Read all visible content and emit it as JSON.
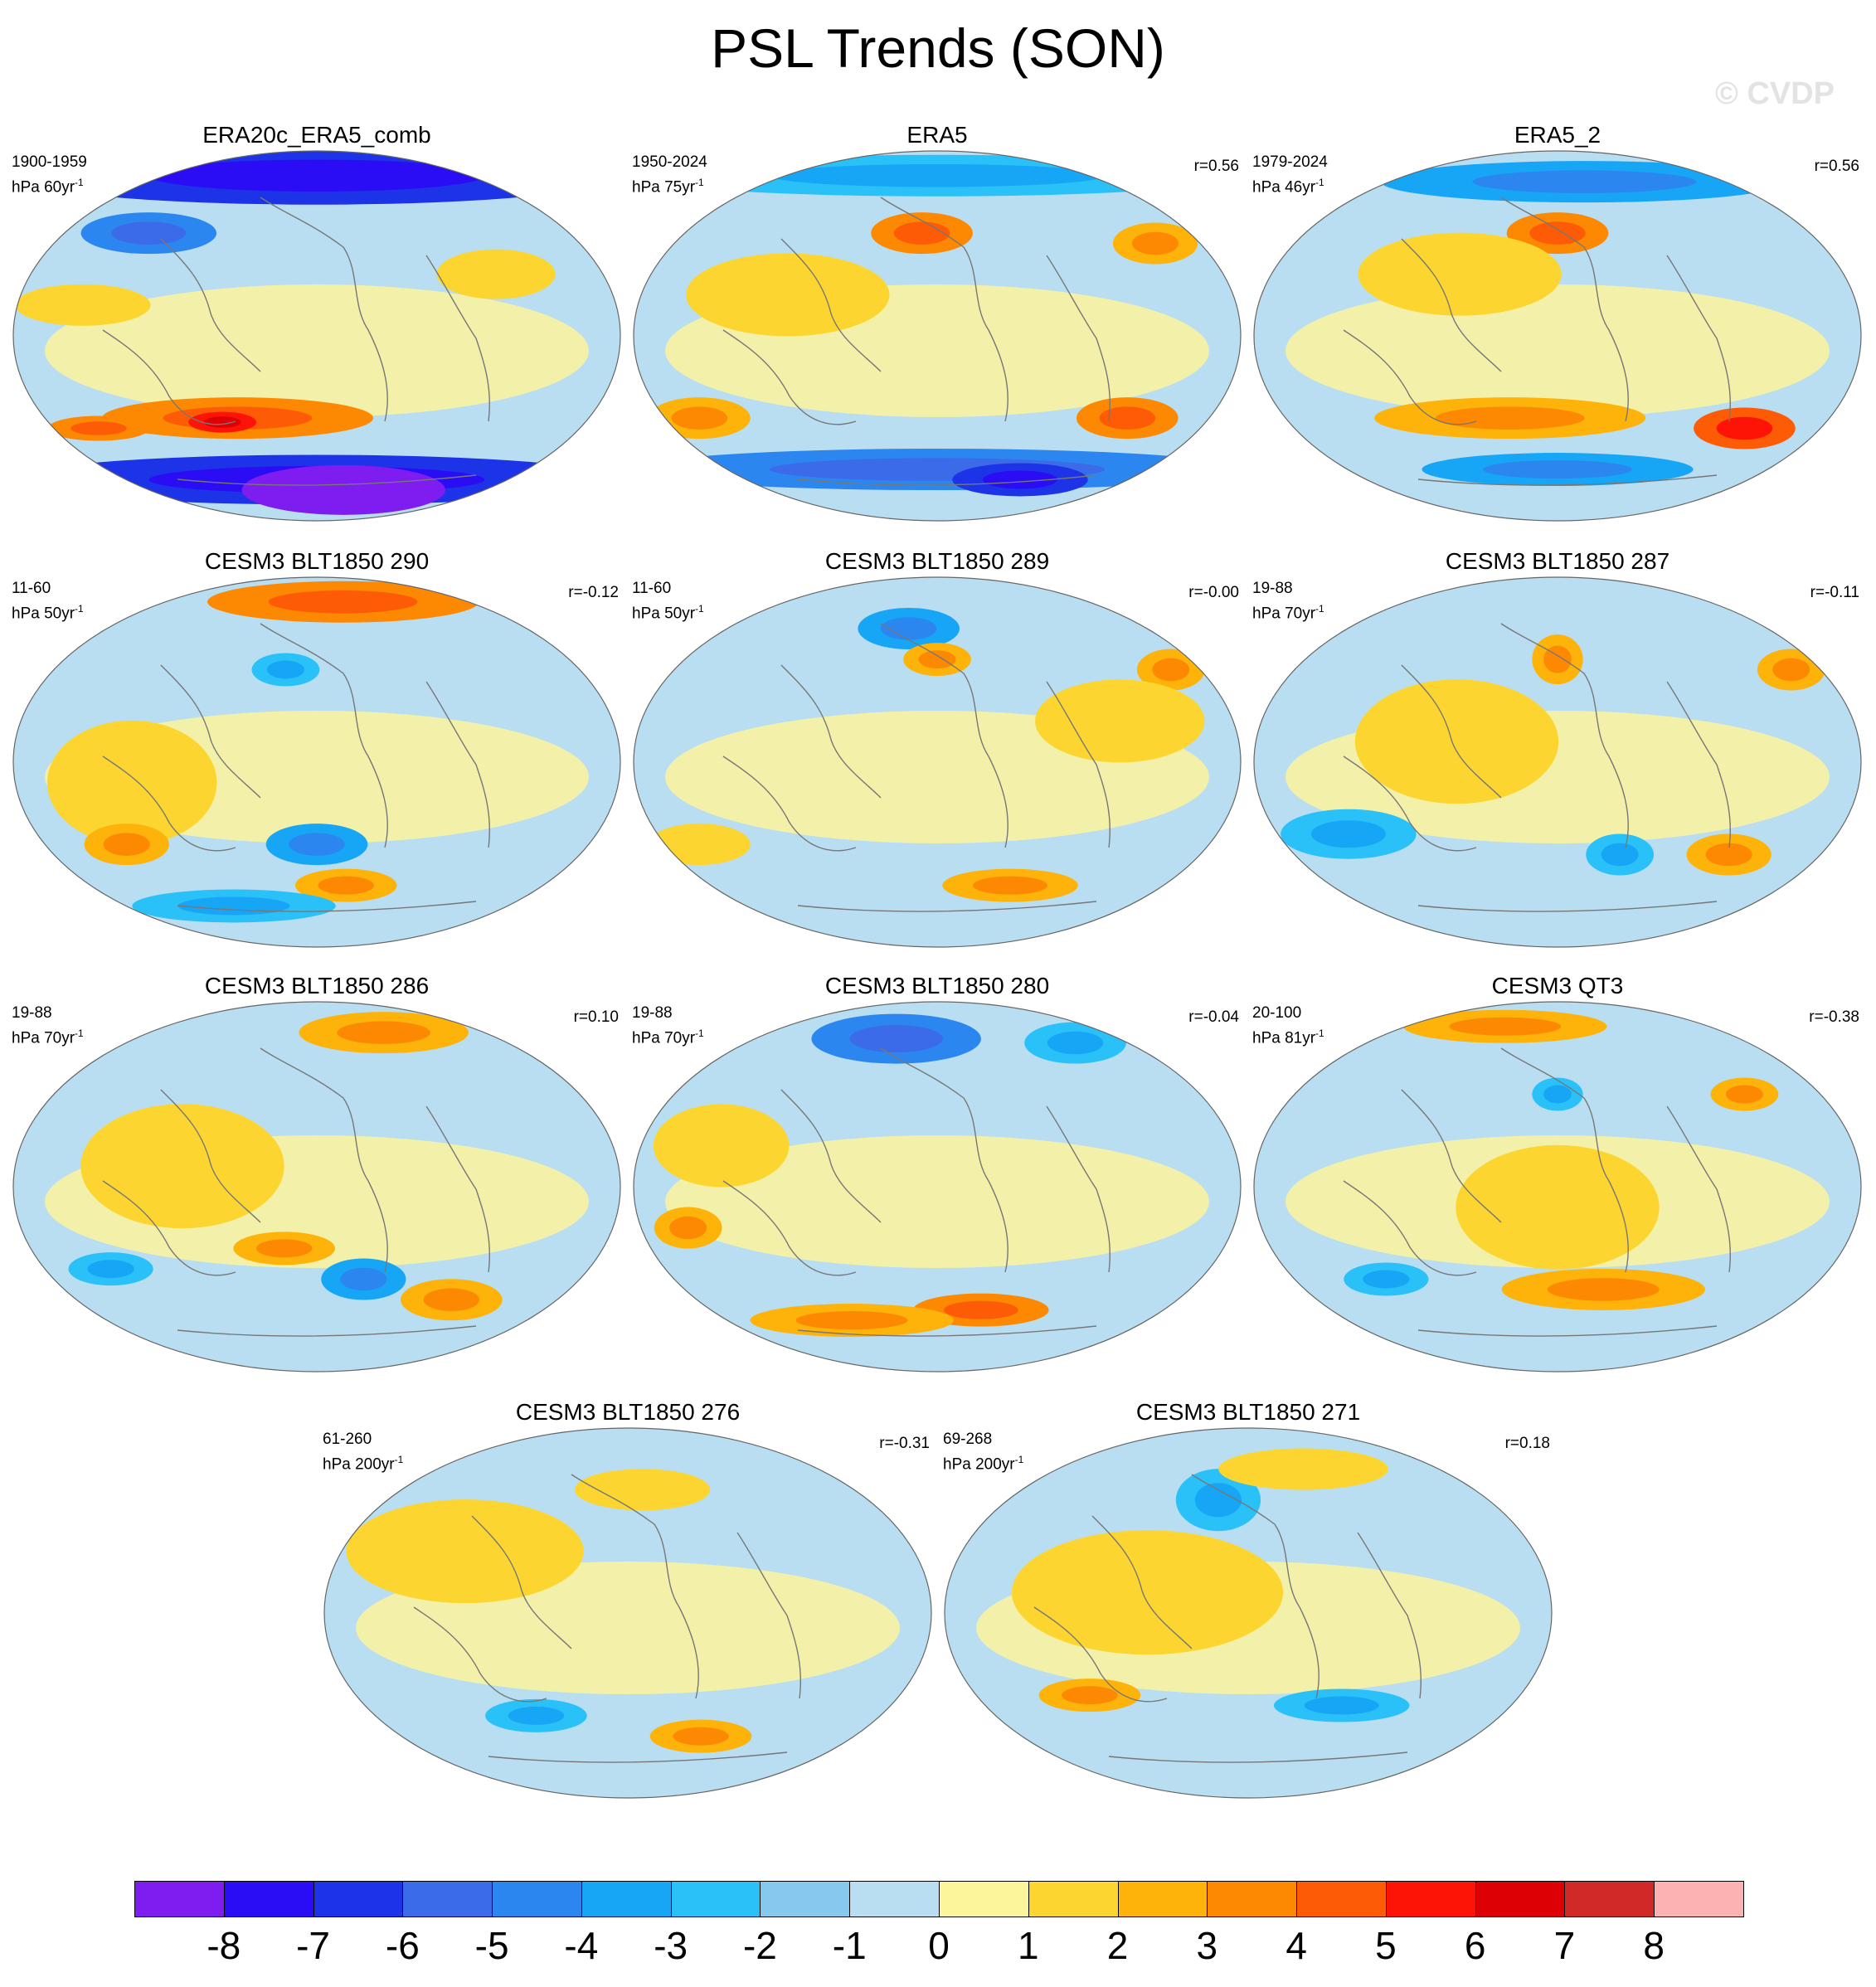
{
  "title": "PSL Trends (SON)",
  "watermark": "© CVDP",
  "palette": {
    "ocean_base": "#b9def2",
    "coast": "#777777",
    "border": "#666666"
  },
  "panels": [
    {
      "id": "era20c",
      "title": "ERA20c_ERA5_comb",
      "period": "1900-1959",
      "units": "hPa 60yr",
      "units_sup": "-1",
      "corr": "",
      "blobs": [
        {
          "lon": 0,
          "lat": 78,
          "rx": 180,
          "ry": 14,
          "level": -6
        },
        {
          "lon": -110,
          "lat": 50,
          "rx": 40,
          "ry": 10,
          "level": -4
        },
        {
          "lon": 110,
          "lat": 30,
          "rx": 35,
          "ry": 12,
          "level": 1
        },
        {
          "lon": -140,
          "lat": 15,
          "rx": 40,
          "ry": 10,
          "level": 1
        },
        {
          "lon": -50,
          "lat": -40,
          "rx": 80,
          "ry": 10,
          "level": 3
        },
        {
          "lon": -60,
          "lat": -42,
          "rx": 20,
          "ry": 5,
          "level": 5
        },
        {
          "lon": -140,
          "lat": -45,
          "rx": 30,
          "ry": 6,
          "level": 3
        },
        {
          "lon": 0,
          "lat": -70,
          "rx": 180,
          "ry": 12,
          "level": -6
        },
        {
          "lon": 20,
          "lat": -75,
          "rx": 60,
          "ry": 12,
          "level": -8
        }
      ]
    },
    {
      "id": "era5",
      "title": "ERA5",
      "period": "1950-2024",
      "units": "hPa 75yr",
      "units_sup": "-1",
      "corr": "r=0.56",
      "blobs": [
        {
          "lon": 0,
          "lat": 78,
          "rx": 180,
          "ry": 10,
          "level": -2
        },
        {
          "lon": -10,
          "lat": 50,
          "rx": 30,
          "ry": 10,
          "level": 3
        },
        {
          "lon": 140,
          "lat": 45,
          "rx": 25,
          "ry": 10,
          "level": 2
        },
        {
          "lon": -90,
          "lat": 20,
          "rx": 60,
          "ry": 20,
          "level": 1
        },
        {
          "lon": -150,
          "lat": -40,
          "rx": 30,
          "ry": 10,
          "level": 2
        },
        {
          "lon": 120,
          "lat": -40,
          "rx": 30,
          "ry": 10,
          "level": 3
        },
        {
          "lon": 0,
          "lat": -65,
          "rx": 180,
          "ry": 10,
          "level": -4
        },
        {
          "lon": 60,
          "lat": -70,
          "rx": 40,
          "ry": 8,
          "level": -6
        }
      ]
    },
    {
      "id": "era5b",
      "title": "ERA5_2",
      "period": "1979-2024",
      "units": "hPa 46yr",
      "units_sup": "-1",
      "corr": "r=0.56",
      "blobs": [
        {
          "lon": 20,
          "lat": 75,
          "rx": 120,
          "ry": 10,
          "level": -3
        },
        {
          "lon": 0,
          "lat": 50,
          "rx": 30,
          "ry": 10,
          "level": 3
        },
        {
          "lon": -60,
          "lat": 30,
          "rx": 60,
          "ry": 20,
          "level": 1
        },
        {
          "lon": -30,
          "lat": -40,
          "rx": 80,
          "ry": 10,
          "level": 2
        },
        {
          "lon": 120,
          "lat": -45,
          "rx": 30,
          "ry": 10,
          "level": 4
        },
        {
          "lon": 0,
          "lat": -65,
          "rx": 80,
          "ry": 8,
          "level": -3
        }
      ]
    },
    {
      "id": "cesm290",
      "title": "CESM3 BLT1850 290",
      "period": "11-60",
      "units": "hPa 50yr",
      "units_sup": "-1",
      "corr": "r=-0.12",
      "blobs": [
        {
          "lon": 20,
          "lat": 78,
          "rx": 80,
          "ry": 10,
          "level": 3
        },
        {
          "lon": -20,
          "lat": 45,
          "rx": 20,
          "ry": 8,
          "level": -2
        },
        {
          "lon": -110,
          "lat": -10,
          "rx": 50,
          "ry": 30,
          "level": 1
        },
        {
          "lon": -120,
          "lat": -40,
          "rx": 25,
          "ry": 10,
          "level": 2
        },
        {
          "lon": 0,
          "lat": -40,
          "rx": 30,
          "ry": 10,
          "level": -3
        },
        {
          "lon": 20,
          "lat": -60,
          "rx": 30,
          "ry": 8,
          "level": 2
        },
        {
          "lon": -60,
          "lat": -70,
          "rx": 60,
          "ry": 8,
          "level": -2
        }
      ]
    },
    {
      "id": "cesm289",
      "title": "CESM3 BLT1850 289",
      "period": "11-60",
      "units": "hPa 50yr",
      "units_sup": "-1",
      "corr": "r=-0.00",
      "blobs": [
        {
          "lon": -20,
          "lat": 65,
          "rx": 30,
          "ry": 10,
          "level": -3
        },
        {
          "lon": 0,
          "lat": 50,
          "rx": 20,
          "ry": 8,
          "level": 2
        },
        {
          "lon": 150,
          "lat": 45,
          "rx": 20,
          "ry": 10,
          "level": 2
        },
        {
          "lon": 110,
          "lat": 20,
          "rx": 50,
          "ry": 20,
          "level": 1
        },
        {
          "lon": -150,
          "lat": -40,
          "rx": 30,
          "ry": 10,
          "level": 1
        },
        {
          "lon": 50,
          "lat": -60,
          "rx": 40,
          "ry": 8,
          "level": 2
        }
      ]
    },
    {
      "id": "cesm287",
      "title": "CESM3 BLT1850 287",
      "period": "19-88",
      "units": "hPa 70yr",
      "units_sup": "-1",
      "corr": "r=-0.11",
      "blobs": [
        {
          "lon": 0,
          "lat": 50,
          "rx": 15,
          "ry": 12,
          "level": 2
        },
        {
          "lon": 150,
          "lat": 45,
          "rx": 20,
          "ry": 10,
          "level": 2
        },
        {
          "lon": -60,
          "lat": 10,
          "rx": 60,
          "ry": 30,
          "level": 1
        },
        {
          "lon": -130,
          "lat": -35,
          "rx": 40,
          "ry": 12,
          "level": -2
        },
        {
          "lon": 110,
          "lat": -45,
          "rx": 25,
          "ry": 10,
          "level": 2
        },
        {
          "lon": 40,
          "lat": -45,
          "rx": 20,
          "ry": 10,
          "level": -2
        }
      ]
    },
    {
      "id": "cesm286",
      "title": "CESM3 BLT1850 286",
      "period": "19-88",
      "units": "hPa 70yr",
      "units_sup": "-1",
      "corr": "r=0.10",
      "blobs": [
        {
          "lon": 50,
          "lat": 75,
          "rx": 50,
          "ry": 10,
          "level": 2
        },
        {
          "lon": -80,
          "lat": 10,
          "rx": 60,
          "ry": 30,
          "level": 1
        },
        {
          "lon": -20,
          "lat": -30,
          "rx": 30,
          "ry": 8,
          "level": 2
        },
        {
          "lon": 30,
          "lat": -45,
          "rx": 25,
          "ry": 10,
          "level": -3
        },
        {
          "lon": -130,
          "lat": -40,
          "rx": 25,
          "ry": 8,
          "level": -2
        },
        {
          "lon": 90,
          "lat": -55,
          "rx": 30,
          "ry": 10,
          "level": 2
        }
      ]
    },
    {
      "id": "cesm280",
      "title": "CESM3 BLT1850 280",
      "period": "19-88",
      "units": "hPa 70yr",
      "units_sup": "-1",
      "corr": "r=-0.04",
      "blobs": [
        {
          "lon": -30,
          "lat": 72,
          "rx": 50,
          "ry": 12,
          "level": -4
        },
        {
          "lon": 100,
          "lat": 70,
          "rx": 30,
          "ry": 10,
          "level": -2
        },
        {
          "lon": -130,
          "lat": 20,
          "rx": 40,
          "ry": 20,
          "level": 1
        },
        {
          "lon": -150,
          "lat": -20,
          "rx": 20,
          "ry": 10,
          "level": 2
        },
        {
          "lon": 30,
          "lat": -60,
          "rx": 40,
          "ry": 8,
          "level": 3
        },
        {
          "lon": -60,
          "lat": -65,
          "rx": 60,
          "ry": 8,
          "level": 2
        }
      ]
    },
    {
      "id": "qt3",
      "title": "CESM3 QT3",
      "period": "20-100",
      "units": "hPa 81yr",
      "units_sup": "-1",
      "corr": "r=-0.38",
      "blobs": [
        {
          "lon": -40,
          "lat": 78,
          "rx": 60,
          "ry": 8,
          "level": 2
        },
        {
          "lon": 0,
          "lat": 45,
          "rx": 15,
          "ry": 8,
          "level": -2
        },
        {
          "lon": 120,
          "lat": 45,
          "rx": 20,
          "ry": 8,
          "level": 2
        },
        {
          "lon": 0,
          "lat": -10,
          "rx": 60,
          "ry": 30,
          "level": 1
        },
        {
          "lon": 30,
          "lat": -50,
          "rx": 60,
          "ry": 10,
          "level": 2
        },
        {
          "lon": -110,
          "lat": -45,
          "rx": 25,
          "ry": 8,
          "level": -2
        }
      ]
    },
    {
      "id": "cesm276",
      "title": "CESM3 BLT1850 276",
      "period": "61-260",
      "units": "hPa 200yr",
      "units_sup": "-1",
      "corr": "r=-0.31",
      "blobs": [
        {
          "lon": -100,
          "lat": 30,
          "rx": 70,
          "ry": 25,
          "level": 1
        },
        {
          "lon": 10,
          "lat": 60,
          "rx": 40,
          "ry": 10,
          "level": 1
        },
        {
          "lon": -60,
          "lat": -50,
          "rx": 30,
          "ry": 8,
          "level": -2
        },
        {
          "lon": 50,
          "lat": -60,
          "rx": 30,
          "ry": 8,
          "level": 2
        }
      ]
    },
    {
      "id": "cesm271",
      "title": "CESM3 BLT1850 271",
      "period": "69-268",
      "units": "hPa 200yr",
      "units_sup": "-1",
      "corr": "r=0.18",
      "blobs": [
        {
          "lon": -20,
          "lat": 55,
          "rx": 25,
          "ry": 15,
          "level": -2
        },
        {
          "lon": -60,
          "lat": 10,
          "rx": 80,
          "ry": 30,
          "level": 1
        },
        {
          "lon": 40,
          "lat": 70,
          "rx": 50,
          "ry": 10,
          "level": 1
        },
        {
          "lon": -100,
          "lat": -40,
          "rx": 30,
          "ry": 8,
          "level": 2
        },
        {
          "lon": 60,
          "lat": -45,
          "rx": 40,
          "ry": 8,
          "level": -2
        }
      ]
    }
  ],
  "colorbar": {
    "colors": [
      "#7f1cf0",
      "#2a0df5",
      "#1c33e8",
      "#3b6be8",
      "#2b86f0",
      "#17a6f6",
      "#29c1f7",
      "#87c9ee",
      "#b9def2",
      "#fdf59c",
      "#fdd531",
      "#fdb309",
      "#fd8903",
      "#fd5b05",
      "#fd1407",
      "#dd0004",
      "#d12828",
      "#fcb2b2"
    ],
    "labels": [
      "-8",
      "-7",
      "-6",
      "-5",
      "-4",
      "-3",
      "-2",
      "-1",
      "0",
      "1",
      "2",
      "3",
      "4",
      "5",
      "6",
      "7",
      "8"
    ]
  }
}
